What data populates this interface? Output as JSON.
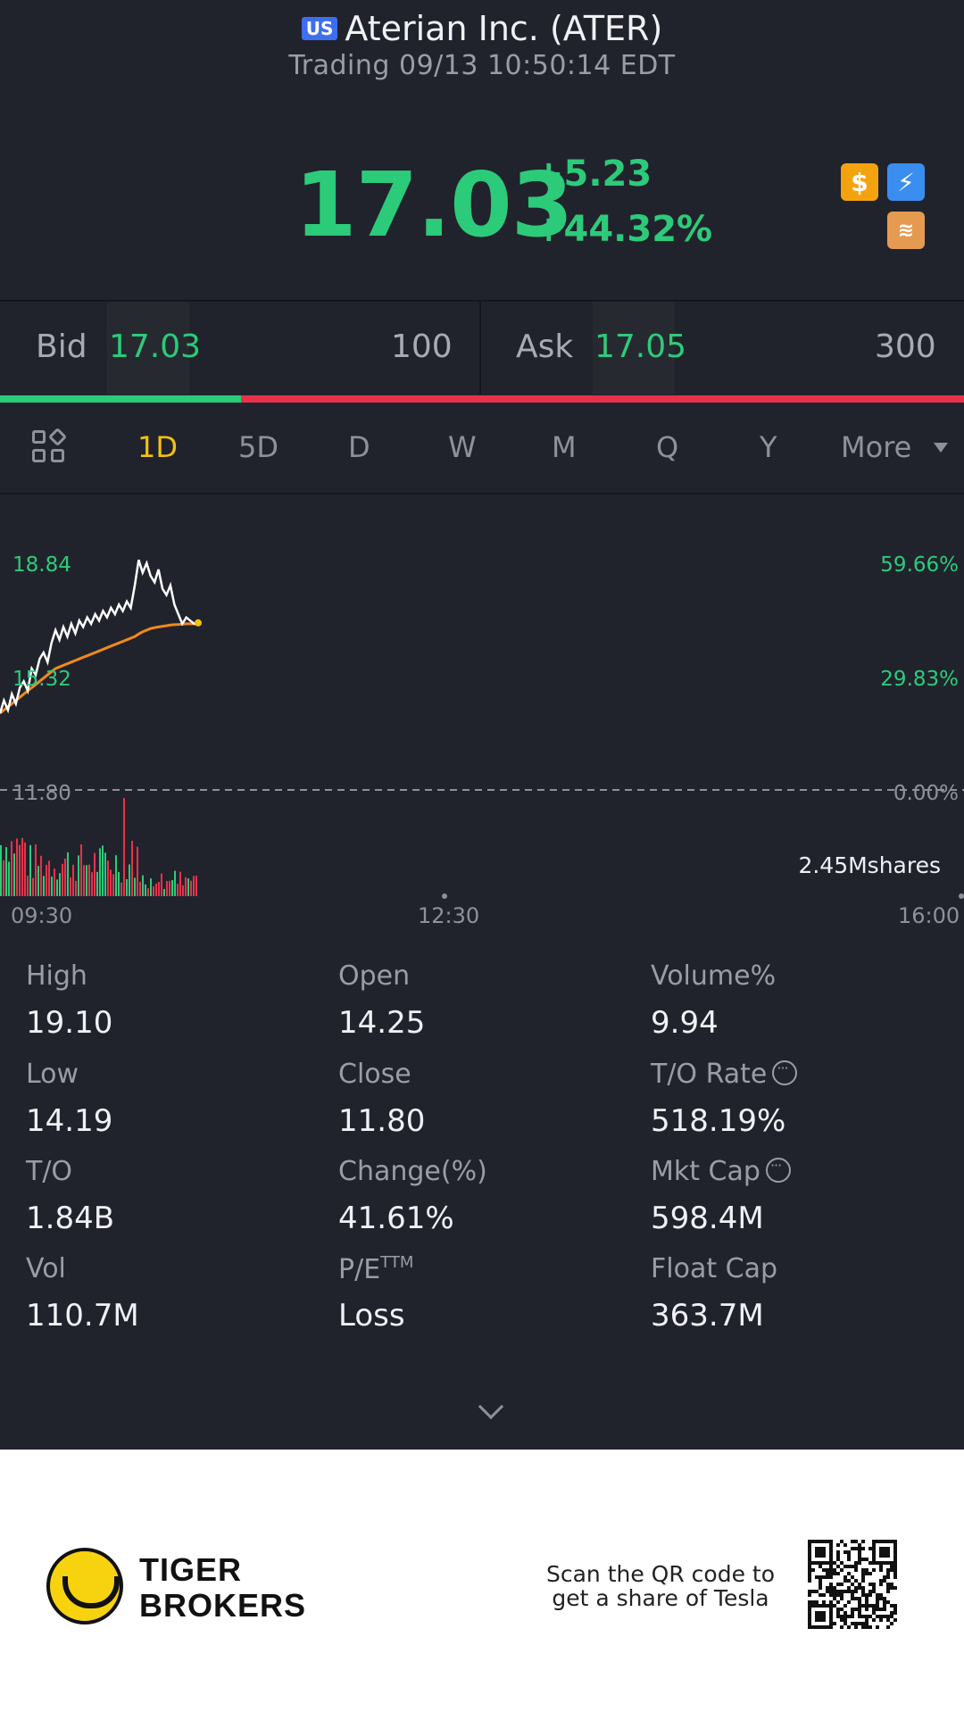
{
  "header": {
    "market_badge": "US",
    "title": "Aterian Inc. (ATER)",
    "subtitle": "Trading 09/13 10:50:14 EDT"
  },
  "quote": {
    "price": "17.03",
    "change": "+5.23",
    "change_pct": "+44.32%",
    "badges": [
      "dollar-icon",
      "flash-icon",
      "stack-icon"
    ],
    "colors": {
      "up": "#2ccb7a",
      "down": "#e8324b",
      "accent": "#f4c20d"
    }
  },
  "bidask": {
    "bid_label": "Bid",
    "bid_price": "17.03",
    "bid_qty": "100",
    "ask_label": "Ask",
    "ask_price": "17.05",
    "ask_qty": "300",
    "bid_ratio": 0.25
  },
  "tabs": {
    "items": [
      "1D",
      "5D",
      "D",
      "W",
      "M",
      "Q",
      "Y"
    ],
    "active": "1D",
    "more_label": "More"
  },
  "chart_data": {
    "type": "line",
    "y_left_labels": [
      "18.84",
      "15.32",
      "11.80"
    ],
    "y_right_labels": [
      "59.66%",
      "29.83%",
      "0.00%"
    ],
    "time_labels": [
      "09:30",
      "12:30",
      "16:00"
    ],
    "volume_label": "2.45Mshares",
    "ylim": [
      11.8,
      18.84
    ],
    "prev_close": 11.8,
    "series": [
      {
        "values": [
          14.2,
          14.6,
          14.3,
          14.8,
          14.5,
          15.0,
          15.2,
          14.9,
          15.6,
          15.4,
          15.9,
          16.1,
          15.8,
          16.4,
          16.8,
          16.5,
          16.9,
          16.6,
          17.0,
          16.7,
          17.1,
          16.9,
          17.2,
          17.0,
          17.3,
          17.1,
          17.4,
          17.2,
          17.5,
          17.3,
          17.6,
          17.4,
          17.7,
          17.5,
          18.2,
          19.0,
          18.6,
          18.9,
          18.5,
          18.3,
          18.7,
          18.1,
          17.9,
          18.2,
          17.6,
          17.3,
          17.0,
          17.2,
          17.1,
          17.0,
          17.03
        ]
      },
      {
        "values": [
          14.2,
          14.3,
          14.4,
          14.5,
          14.6,
          14.7,
          14.8,
          14.9,
          15.0,
          15.1,
          15.2,
          15.3,
          15.4,
          15.5,
          15.6,
          15.65,
          15.7,
          15.75,
          15.8,
          15.85,
          15.9,
          15.95,
          16.0,
          16.05,
          16.1,
          16.15,
          16.2,
          16.25,
          16.3,
          16.35,
          16.4,
          16.45,
          16.5,
          16.55,
          16.6,
          16.68,
          16.75,
          16.8,
          16.85,
          16.88,
          16.9,
          16.92,
          16.94,
          16.96,
          16.97,
          16.98,
          16.99,
          17.0,
          17.0,
          17.0,
          17.0
        ]
      }
    ]
  },
  "stats": [
    {
      "label": "High",
      "value": "19.10"
    },
    {
      "label": "Open",
      "value": "14.25"
    },
    {
      "label": "Volume%",
      "value": "9.94"
    },
    {
      "label": "Low",
      "value": "14.19"
    },
    {
      "label": "Close",
      "value": "11.80"
    },
    {
      "label": "T/O Rate",
      "value": "518.19%"
    },
    {
      "label": "T/O",
      "value": "1.84B"
    },
    {
      "label": "Change(%)",
      "value": "41.61%"
    },
    {
      "label": "Mkt Cap",
      "value": "598.4M"
    },
    {
      "label": "Vol",
      "value": "110.7M"
    },
    {
      "label": "P/E",
      "label_sup": "TTM",
      "value": "Loss"
    },
    {
      "label": "Float Cap",
      "value": "363.7M"
    }
  ],
  "footer": {
    "brand_line1": "TIGER",
    "brand_line2": "BROKERS",
    "scan_line1": "Scan the QR code to",
    "scan_line2": "get a share of Tesla"
  }
}
